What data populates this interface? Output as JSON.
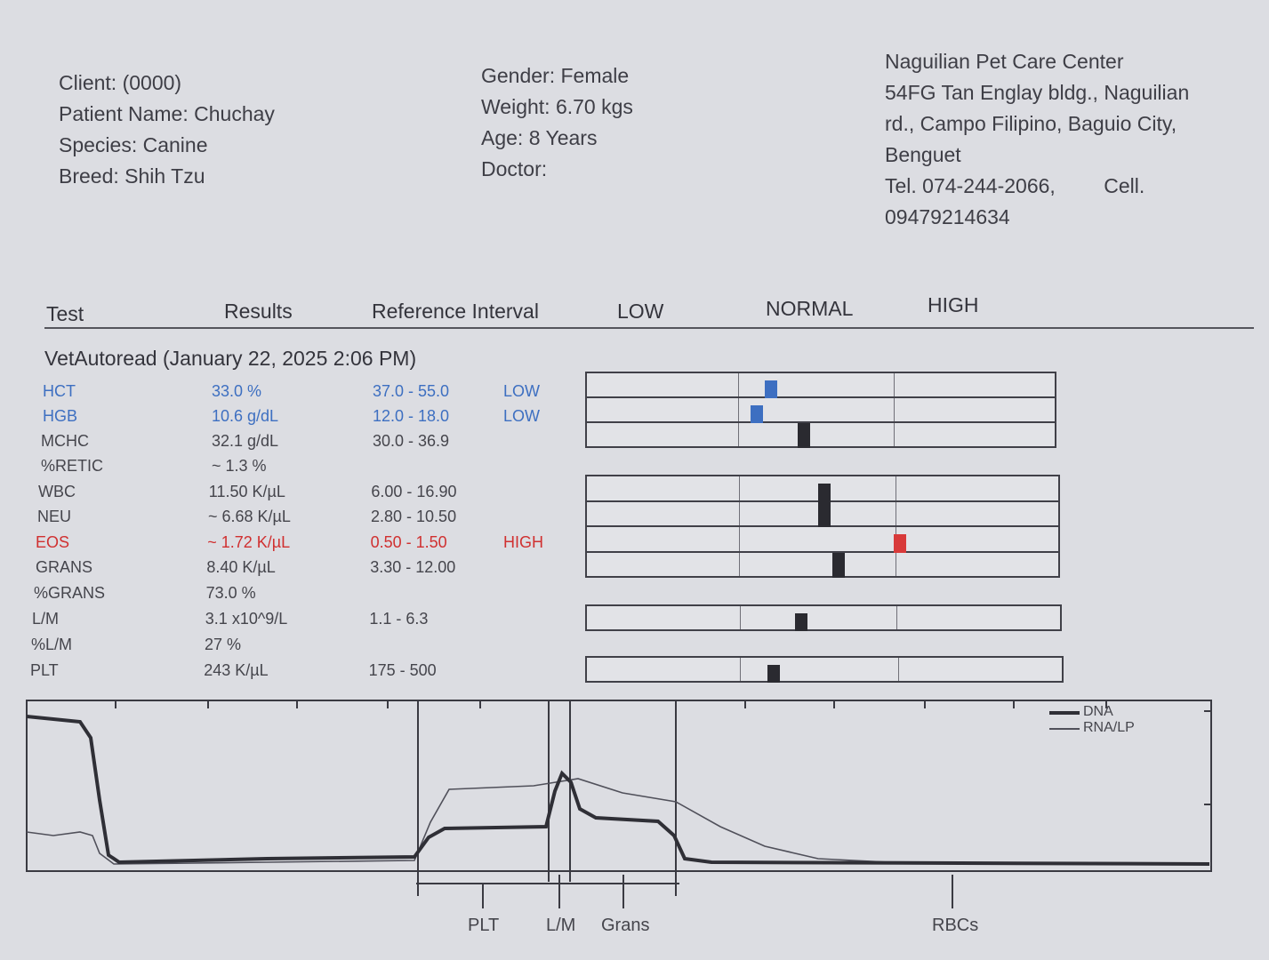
{
  "patient": {
    "client": "Client:  (0000)",
    "patient_name": "Patient Name: Chuchay",
    "species": "Species: Canine",
    "breed": "Breed: Shih Tzu",
    "gender": "Gender: Female",
    "weight": "Weight: 6.70 kgs",
    "age": "Age: 8 Years",
    "doctor": "Doctor:"
  },
  "clinic": {
    "name": "Naguilian Pet Care Center",
    "address1": "54FG Tan Englay bldg., Naguilian",
    "address2": "rd., Campo Filipino, Baguio City,",
    "address3": "Benguet",
    "tel": "Tel. 074-244-2066,",
    "cell": "Cell.",
    "cell_number": "09479214634"
  },
  "columns": {
    "test": "Test",
    "results": "Results",
    "reference": "Reference Interval",
    "low": "LOW",
    "normal": "NORMAL",
    "high": "HIGH"
  },
  "section_title": "VetAutoread (January 22, 2025 2:06 PM)",
  "rows": [
    {
      "test": "HCT",
      "result": "33.0 %",
      "ref": "37.0 - 55.0",
      "flag": "LOW",
      "status": "low"
    },
    {
      "test": "HGB",
      "result": "10.6 g/dL",
      "ref": "12.0 - 18.0",
      "flag": "LOW",
      "status": "low"
    },
    {
      "test": "MCHC",
      "result": "32.1 g/dL",
      "ref": "30.0 - 36.9",
      "flag": "",
      "status": "normal"
    },
    {
      "test": "%RETIC",
      "result": "~ 1.3 %",
      "ref": "",
      "flag": "",
      "status": "normal"
    },
    {
      "test": "WBC",
      "result": "11.50 K/µL",
      "ref": "6.00 - 16.90",
      "flag": "",
      "status": "normal"
    },
    {
      "test": "NEU",
      "result": "~ 6.68 K/µL",
      "ref": "2.80 - 10.50",
      "flag": "",
      "status": "normal"
    },
    {
      "test": "EOS",
      "result": "~ 1.72 K/µL",
      "ref": "0.50 - 1.50",
      "flag": "HIGH",
      "status": "high"
    },
    {
      "test": "GRANS",
      "result": "8.40 K/µL",
      "ref": "3.30 - 12.00",
      "flag": "",
      "status": "normal"
    },
    {
      "test": "%GRANS",
      "result": "73.0 %",
      "ref": "",
      "flag": "",
      "status": "normal"
    },
    {
      "test": "L/M",
      "result": "3.1 x10^9/L",
      "ref": "1.1 - 6.3",
      "flag": "",
      "status": "normal"
    },
    {
      "test": "%L/M",
      "result": "27 %",
      "ref": "",
      "flag": "",
      "status": "normal"
    },
    {
      "test": "PLT",
      "result": "243 K/µL",
      "ref": "175 - 500",
      "flag": "",
      "status": "normal"
    }
  ],
  "range_markers": {
    "colors": {
      "low": "#3d6fc1",
      "normal": "#2a2a30",
      "high": "#d83a3a"
    },
    "groups": [
      {
        "rows": [
          {
            "test": "HCT",
            "position": 0.39,
            "status": "low"
          },
          {
            "test": "HGB",
            "position": 0.36,
            "status": "low"
          },
          {
            "test": "MCHC",
            "position": 0.46,
            "status": "normal"
          }
        ]
      },
      {
        "rows": [
          {
            "test": "WBC",
            "position": 0.5,
            "status": "normal"
          },
          {
            "test": "NEU",
            "position": 0.5,
            "status": "normal"
          },
          {
            "test": "EOS",
            "position": 0.66,
            "status": "high"
          },
          {
            "test": "GRANS",
            "position": 0.53,
            "status": "normal"
          }
        ]
      },
      {
        "rows": [
          {
            "test": "L/M",
            "position": 0.45,
            "status": "normal"
          }
        ]
      },
      {
        "rows": [
          {
            "test": "PLT",
            "position": 0.39,
            "status": "normal"
          }
        ]
      }
    ]
  },
  "plot": {
    "legend": [
      "DNA",
      "RNA/LP"
    ],
    "axis_labels": [
      "PLT",
      "L/M",
      "Grans",
      "RBCs"
    ]
  }
}
